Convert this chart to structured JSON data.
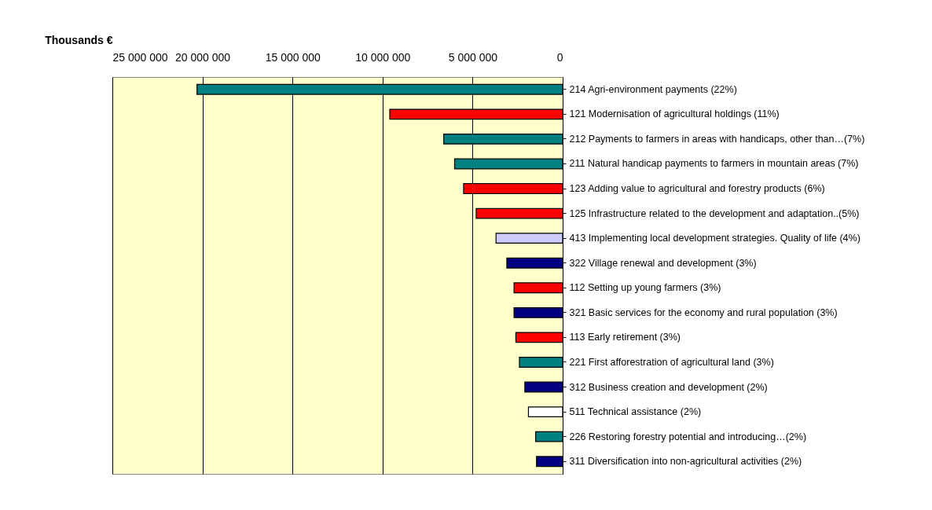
{
  "chart_data": {
    "type": "bar",
    "orientation": "horizontal",
    "xlabel": "Thousands €",
    "categories": [
      "214 Agri-environment payments (22%)",
      "121 Modernisation of agricultural holdings (11%)",
      "212 Payments to farmers in areas with handicaps, other than…(7%)",
      "211 Natural handicap payments to farmers in mountain areas (7%)",
      "123 Adding value to agricultural and forestry products (6%)",
      "125 Infrastructure related to the development and adaptation..(5%)",
      "413 Implementing local development strategies. Quality of life (4%)",
      "322 Village renewal and development (3%)",
      "112 Setting up young farmers (3%)",
      "321 Basic services for the economy and rural population (3%)",
      "113 Early retirement (3%)",
      "221 First afforestration of agricultural land (3%)",
      "312 Business creation and development (2%)",
      "511 Technical assistance (2%)",
      "226 Restoring forestry potential and introducing…(2%)",
      "311 Diversification into non-agricultural activities (2%)"
    ],
    "values": [
      20300000,
      9600000,
      6600000,
      6000000,
      5500000,
      4800000,
      3700000,
      3100000,
      2700000,
      2700000,
      2600000,
      2400000,
      2100000,
      1900000,
      1500000,
      1450000
    ],
    "colors": [
      "#008080",
      "#ff0000",
      "#008080",
      "#008080",
      "#ff0000",
      "#ff0000",
      "#ccccff",
      "#000080",
      "#ff0000",
      "#000080",
      "#ff0000",
      "#008080",
      "#000080",
      "#ffffff",
      "#008080",
      "#000080"
    ],
    "xlim": [
      25000000,
      0
    ],
    "xticks": [
      {
        "value": 25000000,
        "label": "25 000 000"
      },
      {
        "value": 20000000,
        "label": "20 000 000"
      },
      {
        "value": 15000000,
        "label": "15 000 000"
      },
      {
        "value": 10000000,
        "label": "10 000 000"
      },
      {
        "value": 5000000,
        "label": "5 000 000"
      },
      0
    ],
    "grid": "x"
  }
}
